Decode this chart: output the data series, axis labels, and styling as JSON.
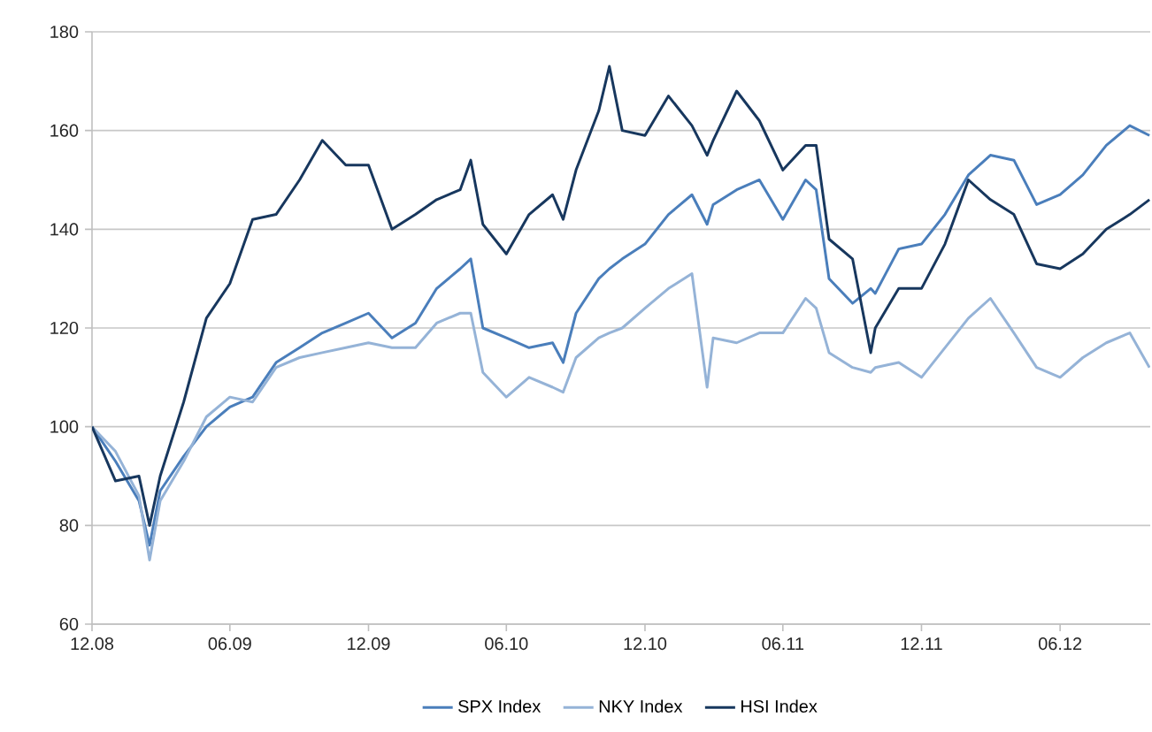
{
  "chart_data": {
    "type": "line",
    "x": [
      "2008-12-01",
      "2009-01-01",
      "2009-02-01",
      "2009-02-15",
      "2009-03-01",
      "2009-04-01",
      "2009-05-01",
      "2009-06-01",
      "2009-07-01",
      "2009-08-01",
      "2009-09-01",
      "2009-10-01",
      "2009-11-01",
      "2009-12-01",
      "2010-01-01",
      "2010-02-01",
      "2010-03-01",
      "2010-04-01",
      "2010-04-15",
      "2010-05-01",
      "2010-06-01",
      "2010-07-01",
      "2010-08-01",
      "2010-08-15",
      "2010-09-01",
      "2010-10-01",
      "2010-10-15",
      "2010-11-01",
      "2010-12-01",
      "2011-01-01",
      "2011-02-01",
      "2011-02-21",
      "2011-03-01",
      "2011-04-01",
      "2011-05-01",
      "2011-06-01",
      "2011-07-01",
      "2011-07-15",
      "2011-08-01",
      "2011-09-01",
      "2011-09-25",
      "2011-10-01",
      "2011-11-01",
      "2011-12-01",
      "2012-01-01",
      "2012-02-01",
      "2012-03-01",
      "2012-04-01",
      "2012-05-01",
      "2012-06-01",
      "2012-07-01",
      "2012-08-01",
      "2012-09-01",
      "2012-09-27"
    ],
    "series": [
      {
        "name": "SPX Index",
        "color": "#4a7ebb",
        "values": [
          100,
          93,
          85,
          76,
          87,
          94,
          100,
          104,
          106,
          113,
          116,
          119,
          121,
          123,
          118,
          121,
          128,
          132,
          134,
          120,
          118,
          116,
          117,
          113,
          123,
          130,
          132,
          134,
          137,
          143,
          147,
          141,
          145,
          148,
          150,
          142,
          150,
          148,
          130,
          125,
          128,
          127,
          136,
          137,
          143,
          151,
          155,
          154,
          145,
          147,
          151,
          157,
          161,
          159
        ]
      },
      {
        "name": "NKY Index",
        "color": "#95b3d7",
        "values": [
          100,
          95,
          86,
          73,
          85,
          93,
          102,
          106,
          105,
          112,
          114,
          115,
          116,
          117,
          116,
          116,
          121,
          123,
          123,
          111,
          106,
          110,
          108,
          107,
          114,
          118,
          119,
          120,
          124,
          128,
          131,
          108,
          118,
          117,
          119,
          119,
          126,
          124,
          115,
          112,
          111,
          112,
          113,
          110,
          116,
          122,
          126,
          119,
          112,
          110,
          114,
          117,
          119,
          112
        ]
      },
      {
        "name": "HSI Index",
        "color": "#17375e",
        "values": [
          100,
          89,
          90,
          80,
          90,
          105,
          122,
          129,
          142,
          143,
          150,
          158,
          153,
          153,
          140,
          143,
          146,
          148,
          154,
          141,
          135,
          143,
          147,
          142,
          152,
          164,
          173,
          160,
          159,
          167,
          161,
          155,
          158,
          168,
          162,
          152,
          157,
          157,
          138,
          134,
          115,
          120,
          128,
          128,
          137,
          150,
          146,
          143,
          133,
          132,
          135,
          140,
          143,
          146
        ]
      }
    ],
    "xlim": [
      "2008-12-01",
      "2012-09-28"
    ],
    "xticks": [
      {
        "value": "2008-12-01",
        "label": "12.08"
      },
      {
        "value": "2009-06-01",
        "label": "06.09"
      },
      {
        "value": "2009-12-01",
        "label": "12.09"
      },
      {
        "value": "2010-06-01",
        "label": "06.10"
      },
      {
        "value": "2010-12-01",
        "label": "12.10"
      },
      {
        "value": "2011-06-01",
        "label": "06.11"
      },
      {
        "value": "2011-12-01",
        "label": "12.11"
      },
      {
        "value": "2012-06-01",
        "label": "06.12"
      }
    ],
    "ylim": [
      60,
      180
    ],
    "yticks": [
      60,
      80,
      100,
      120,
      140,
      160,
      180
    ],
    "grid": "y",
    "legend": "bottom"
  }
}
